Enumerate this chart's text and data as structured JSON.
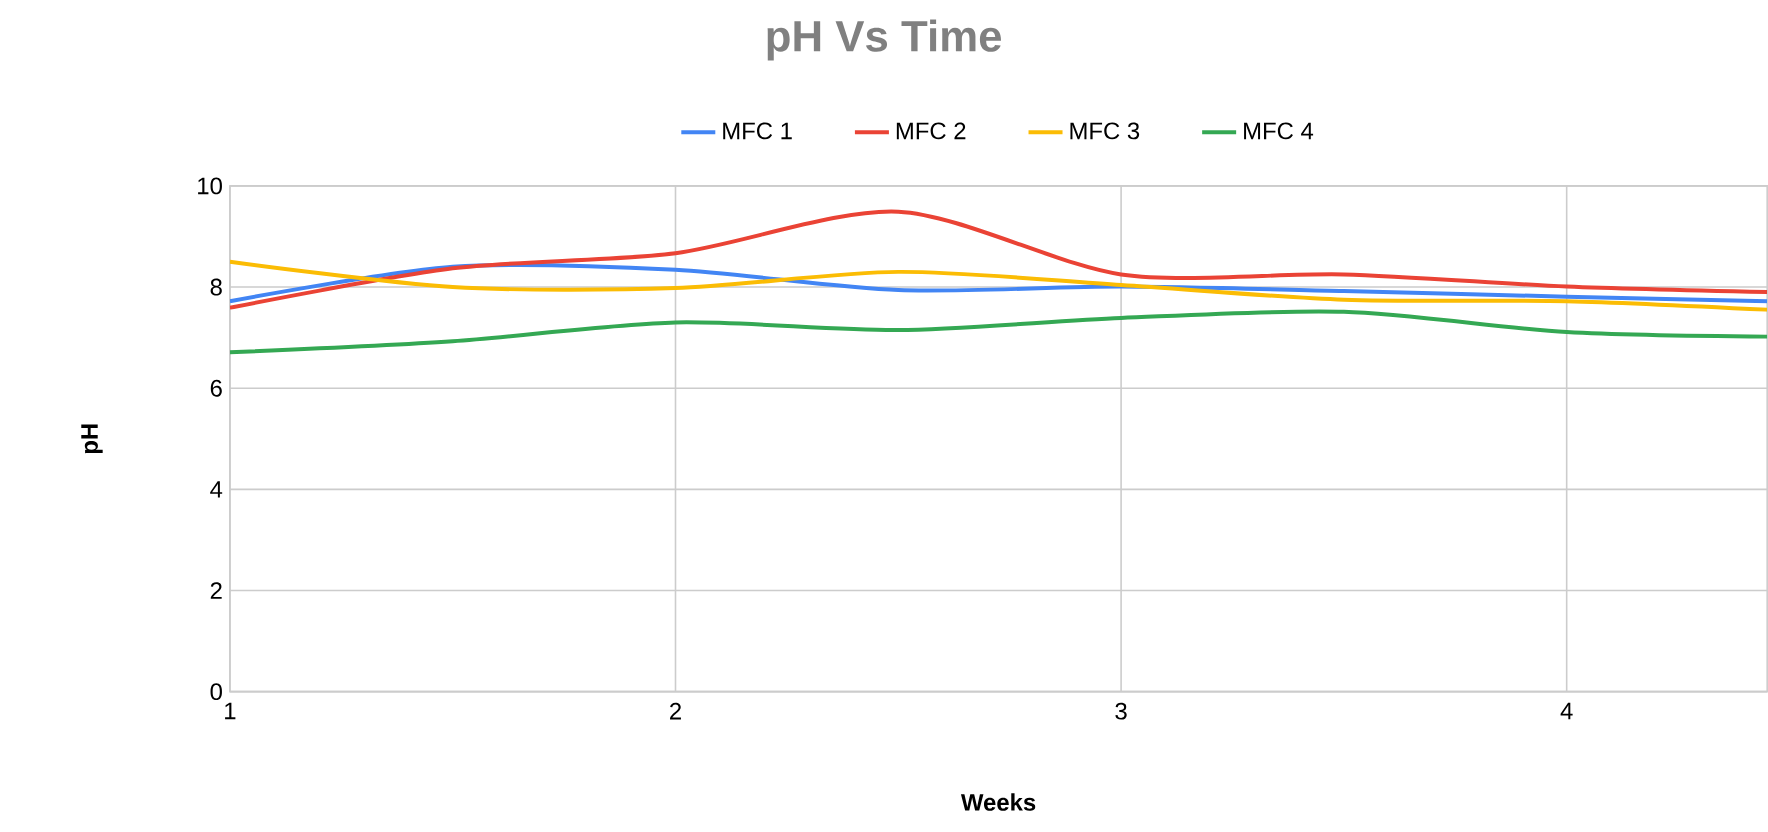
{
  "chart_data": {
    "type": "line",
    "title": "pH Vs Time",
    "xlabel": "Weeks",
    "ylabel": "pH",
    "x": [
      1,
      1.5,
      2,
      2.5,
      3,
      3.5,
      4,
      4.45
    ],
    "xlim": [
      1,
      4.45
    ],
    "xticks": [
      1,
      2,
      3,
      4
    ],
    "ylim": [
      0,
      10
    ],
    "yticks": [
      0,
      2,
      4,
      6,
      8,
      10
    ],
    "grid": true,
    "legend": "top",
    "marker": "none",
    "line_style": "solid",
    "series": [
      {
        "name": "MFC 1",
        "color": "#4285f4",
        "values": [
          7.72,
          8.4,
          8.34,
          7.94,
          8.01,
          7.92,
          7.81,
          7.72
        ]
      },
      {
        "name": "MFC 2",
        "color": "#ea4335",
        "values": [
          7.59,
          8.37,
          8.67,
          9.49,
          8.25,
          8.25,
          8.01,
          7.9
        ]
      },
      {
        "name": "MFC 3",
        "color": "#fbbc04",
        "values": [
          8.5,
          8.0,
          7.98,
          8.3,
          8.04,
          7.75,
          7.72,
          7.55
        ]
      },
      {
        "name": "MFC 4",
        "color": "#34a853",
        "values": [
          6.71,
          6.93,
          7.3,
          7.15,
          7.39,
          7.51,
          7.11,
          7.02
        ]
      }
    ]
  }
}
